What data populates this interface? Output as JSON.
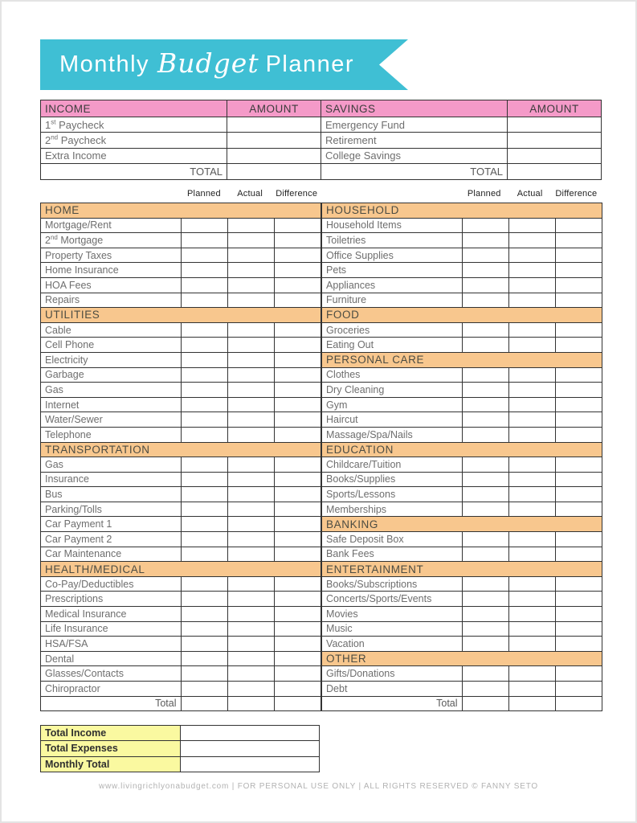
{
  "title": {
    "part1": "Monthly",
    "part2": "Budget",
    "part3": "Planner"
  },
  "income": {
    "headers": [
      "INCOME",
      "AMOUNT",
      "SAVINGS",
      "AMOUNT"
    ],
    "left_rows": [
      "1st Paycheck",
      "2nd Paycheck",
      "Extra Income"
    ],
    "right_rows": [
      "Emergency Fund",
      "Retirement",
      "College Savings"
    ],
    "total_label": "TOTAL"
  },
  "budget": {
    "column_headers": [
      "Planned",
      "Actual",
      "Difference"
    ],
    "left_sections": [
      {
        "name": "HOME",
        "items": [
          "Mortgage/Rent",
          "2nd Mortgage",
          "Property Taxes",
          "Home Insurance",
          "HOA Fees",
          "Repairs"
        ]
      },
      {
        "name": "UTILITIES",
        "items": [
          "Cable",
          "Cell Phone",
          "Electricity",
          "Garbage",
          "Gas",
          "Internet",
          "Water/Sewer",
          "Telephone"
        ]
      },
      {
        "name": "TRANSPORTATION",
        "items": [
          "Gas",
          "Insurance",
          "Bus",
          "Parking/Tolls",
          "Car Payment 1",
          "Car Payment 2",
          "Car Maintenance"
        ]
      },
      {
        "name": "HEALTH/MEDICAL",
        "items": [
          "Co-Pay/Deductibles",
          "Prescriptions",
          "Medical Insurance",
          "Life Insurance",
          "HSA/FSA",
          "Dental",
          "Glasses/Contacts",
          "Chiropractor"
        ]
      }
    ],
    "right_sections": [
      {
        "name": "HOUSEHOLD",
        "items": [
          "Household Items",
          "Toiletries",
          "Office Supplies",
          "Pets",
          "Appliances",
          "Furniture"
        ]
      },
      {
        "name": "FOOD",
        "items": [
          "Groceries",
          "Eating Out"
        ]
      },
      {
        "name": "PERSONAL CARE",
        "items": [
          "Clothes",
          "Dry Cleaning",
          "Gym",
          "Haircut",
          "Massage/Spa/Nails"
        ]
      },
      {
        "name": "EDUCATION",
        "items": [
          "Childcare/Tuition",
          "Books/Supplies",
          "Sports/Lessons",
          "Memberships"
        ]
      },
      {
        "name": "BANKING",
        "items": [
          "Safe Deposit Box",
          "Bank Fees"
        ]
      },
      {
        "name": "ENTERTAINMENT",
        "items": [
          "Books/Subscriptions",
          "Concerts/Sports/Events",
          "Movies",
          "Music",
          "Vacation"
        ]
      },
      {
        "name": "OTHER",
        "items": [
          "Gifts/Donations",
          "Debt"
        ]
      }
    ],
    "total_label": "Total"
  },
  "summary": {
    "rows": [
      "Total Income",
      "Total Expenses",
      "Monthly Total"
    ]
  },
  "footer": {
    "text": "www.livingrichlyonabudget.com  |  FOR PERSONAL USE ONLY  |  ALL RIGHTS RESERVED © FANNY SETO"
  },
  "colors": {
    "teal": "#3fbfd4",
    "pink": "#f49ac8",
    "orange": "#f8c78e",
    "yellow": "#faf9a0"
  }
}
